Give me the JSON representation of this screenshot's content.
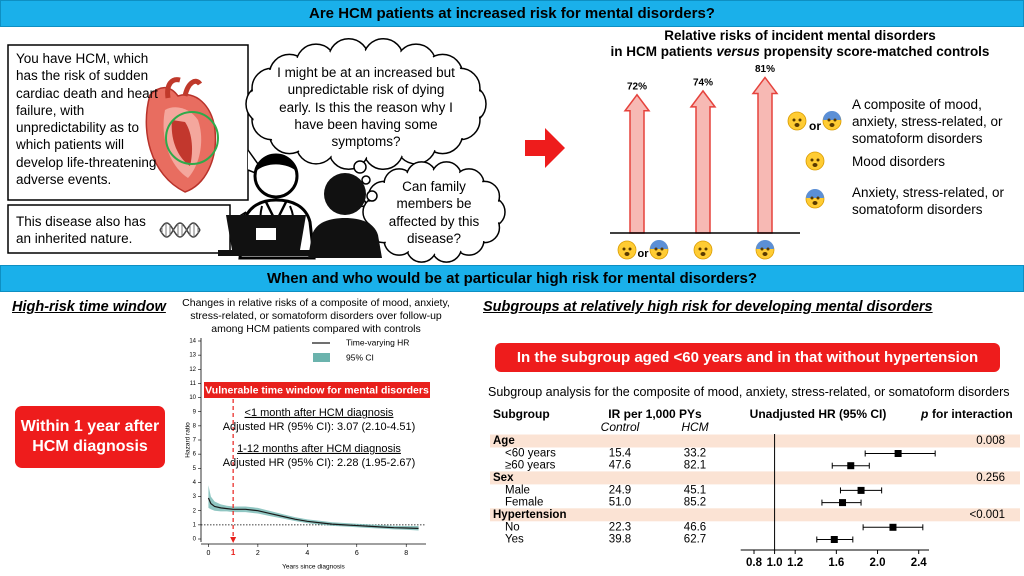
{
  "header": {
    "title": "Are HCM patients at increased risk for mental disorders?"
  },
  "scenario": {
    "doctor_message": "You have HCM, which has the risk of sudden cardiac death and heart failure, with unpredictability as to which patients will develop life-threatening adverse events.",
    "doctor_message_2": "This disease also has an inherited nature.",
    "patient_thought_1": "I might be at an increased but unpredictable risk of dying early. Is this the reason why I have been having some symptoms?",
    "patient_thought_2": "Can family members be affected by this disease?"
  },
  "section2": {
    "title": "When and who would be at particular high risk for mental disorders?"
  },
  "time_window": {
    "heading": "High-risk time window",
    "highlight": "Within 1 year after HCM diagnosis"
  },
  "chart_data": [
    {
      "type": "bar",
      "title": "Relative risks of incident mental disorders",
      "subtitle_parts": [
        "in HCM patients",
        "versus",
        "propensity score-matched controls"
      ],
      "values": [
        72,
        74,
        81
      ],
      "value_labels": [
        "72%",
        "74%",
        "81%"
      ],
      "color": "#f7b9b4",
      "edge_color": "#e5423c",
      "icon_joiner": "or",
      "legend": [
        "A composite of mood, anxiety, stress-related, or somatoform disorders",
        "Mood disorders",
        "Anxiety, stress-related, or somatoform disorders"
      ]
    },
    {
      "type": "line",
      "title": "Changes in relative risks of a composite of mood, anxiety, stress-related, or somatoform disorders over follow-up among HCM patients compared with controls",
      "x": [
        0,
        0.1,
        0.25,
        0.5,
        0.75,
        1,
        1.5,
        2,
        2.5,
        3,
        3.5,
        4,
        4.5,
        5,
        5.5,
        6,
        6.5,
        7,
        7.5,
        8,
        8.5
      ],
      "series": [
        {
          "name": "Time-varying HR",
          "color": "#1a1a1a",
          "values": [
            2.9,
            2.5,
            2.3,
            2.2,
            2.15,
            2.1,
            2.1,
            2.0,
            1.8,
            1.6,
            1.4,
            1.25,
            1.15,
            1.05,
            1.0,
            0.95,
            0.9,
            0.85,
            0.8,
            0.78,
            0.75
          ]
        }
      ],
      "ci": {
        "name": "95% CI",
        "color": "#6bb3ad",
        "lower": [
          2.2,
          2.1,
          2.0,
          1.95,
          1.95,
          1.9,
          1.9,
          1.8,
          1.62,
          1.45,
          1.27,
          1.12,
          1.02,
          0.93,
          0.88,
          0.83,
          0.78,
          0.73,
          0.68,
          0.65,
          0.6
        ],
        "upper": [
          3.8,
          3.0,
          2.65,
          2.45,
          2.35,
          2.3,
          2.3,
          2.2,
          1.98,
          1.76,
          1.55,
          1.39,
          1.29,
          1.18,
          1.13,
          1.08,
          1.03,
          0.98,
          0.93,
          0.92,
          0.92
        ]
      },
      "xlim": [
        -0.3,
        8.8
      ],
      "ylim": [
        0,
        14
      ],
      "xticks": [
        0,
        2,
        4,
        6,
        8
      ],
      "yticks": [
        0,
        1,
        2,
        3,
        4,
        5,
        6,
        7,
        8,
        9,
        10,
        11,
        12,
        13,
        14
      ],
      "xlabel": "Years since diagnosis",
      "ylabel": "Hazard ratio",
      "reference_line": 1,
      "window": {
        "x": 1,
        "label": "Vulnerable time window for mental disorders",
        "color": "#e8201c"
      },
      "annotations": [
        {
          "heading": "<1 month after HCM diagnosis",
          "text": "Adjusted HR (95% CI): 3.07 (2.10-4.51)"
        },
        {
          "heading": "1-12 months after HCM diagnosis",
          "text": "Adjusted HR (95% CI): 2.28 (1.95-2.67)"
        }
      ]
    },
    {
      "type": "forest",
      "heading": "Subgroups at relatively high risk for developing mental disorders",
      "banner": "In the subgroup aged <60 years and in that without hypertension",
      "title": "Subgroup analysis for the composite of mood, anxiety, stress-related, or somatoform disorders",
      "columns": {
        "subgroup": "Subgroup",
        "ir": "IR per 1,000 PYs",
        "control": "Control",
        "hcm": "HCM",
        "hr": "Unadjusted HR (95% CI)",
        "p": "p",
        "p_rest": "for interaction"
      },
      "groups": [
        {
          "label": "Age",
          "p": "0.008",
          "rows": [
            {
              "label": "<60 years",
              "control": "15.4",
              "hcm": "33.2",
              "hr": 2.2,
              "lower": 1.88,
              "upper": 2.56
            },
            {
              "label": "≥60 years",
              "control": "47.6",
              "hcm": "82.1",
              "hr": 1.74,
              "lower": 1.56,
              "upper": 1.92
            }
          ]
        },
        {
          "label": "Sex",
          "p": "0.256",
          "rows": [
            {
              "label": "Male",
              "control": "24.9",
              "hcm": "45.1",
              "hr": 1.84,
              "lower": 1.64,
              "upper": 2.04
            },
            {
              "label": "Female",
              "control": "51.0",
              "hcm": "85.2",
              "hr": 1.66,
              "lower": 1.46,
              "upper": 1.84
            }
          ]
        },
        {
          "label": "Hypertension",
          "p": "<0.001",
          "rows": [
            {
              "label": "No",
              "control": "22.3",
              "hcm": "46.6",
              "hr": 2.15,
              "lower": 1.86,
              "upper": 2.44
            },
            {
              "label": "Yes",
              "control": "39.8",
              "hcm": "62.7",
              "hr": 1.58,
              "lower": 1.41,
              "upper": 1.76
            }
          ]
        }
      ],
      "xlim": [
        0.7,
        2.5
      ],
      "xticks": [
        0.8,
        {
          "value": 1,
          "label": "1.0"
        },
        1.2,
        1.6,
        {
          "value": 2,
          "label": "2.0"
        },
        2.4
      ],
      "reference_line": 1,
      "color": "#000000",
      "row_shade": "#fbe3d4"
    }
  ]
}
